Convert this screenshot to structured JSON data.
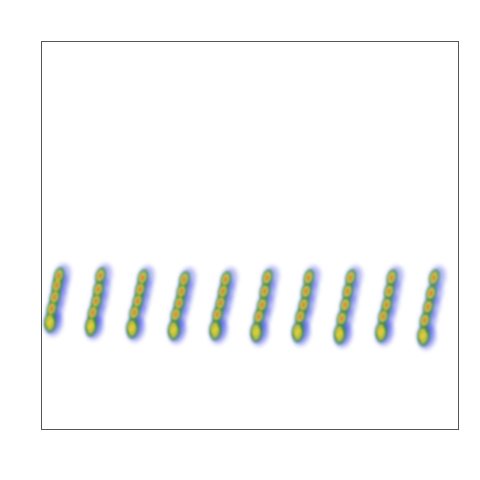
{
  "chart_data": {
    "type": "density",
    "tick_labels": false,
    "xlim": [
      0.66,
      10.71
    ],
    "ylim": [
      0,
      10
    ],
    "series": [
      {
        "x": [
          0.87,
          0.93,
          1.0,
          1.05,
          1.1,
          0.9
        ],
        "y": [
          2.8,
          3.1,
          3.4,
          3.7,
          3.95,
          2.7
        ]
      },
      {
        "x": [
          1.86,
          1.92,
          2.0,
          2.05,
          2.1,
          1.88
        ],
        "y": [
          2.7,
          3.0,
          3.3,
          3.6,
          3.95,
          2.6
        ]
      },
      {
        "x": [
          2.85,
          2.92,
          3.0,
          3.06,
          3.12,
          2.88
        ],
        "y": [
          2.65,
          3.0,
          3.3,
          3.6,
          3.9,
          2.55
        ]
      },
      {
        "x": [
          3.85,
          3.92,
          4.0,
          4.06,
          4.12,
          3.88
        ],
        "y": [
          2.6,
          2.95,
          3.25,
          3.55,
          3.85,
          2.5
        ]
      },
      {
        "x": [
          4.85,
          4.92,
          5.0,
          5.06,
          5.12,
          4.88
        ],
        "y": [
          2.6,
          2.95,
          3.25,
          3.55,
          3.85,
          2.5
        ]
      },
      {
        "x": [
          5.84,
          5.92,
          6.0,
          6.06,
          6.12,
          5.87
        ],
        "y": [
          2.55,
          2.9,
          3.2,
          3.55,
          3.9,
          2.45
        ]
      },
      {
        "x": [
          6.84,
          6.92,
          7.0,
          7.06,
          7.12,
          6.87
        ],
        "y": [
          2.55,
          2.9,
          3.2,
          3.55,
          3.9,
          2.45
        ]
      },
      {
        "x": [
          7.85,
          7.92,
          8.0,
          8.06,
          8.13,
          7.88
        ],
        "y": [
          2.5,
          2.85,
          3.2,
          3.55,
          3.9,
          2.4
        ]
      },
      {
        "x": [
          8.85,
          8.92,
          9.0,
          9.06,
          9.12,
          8.88
        ],
        "y": [
          2.55,
          2.9,
          3.2,
          3.55,
          3.9,
          2.45
        ]
      },
      {
        "x": [
          9.86,
          9.92,
          10.0,
          10.07,
          10.14,
          9.9
        ],
        "y": [
          2.45,
          2.8,
          3.15,
          3.5,
          3.9,
          2.35
        ]
      }
    ]
  }
}
